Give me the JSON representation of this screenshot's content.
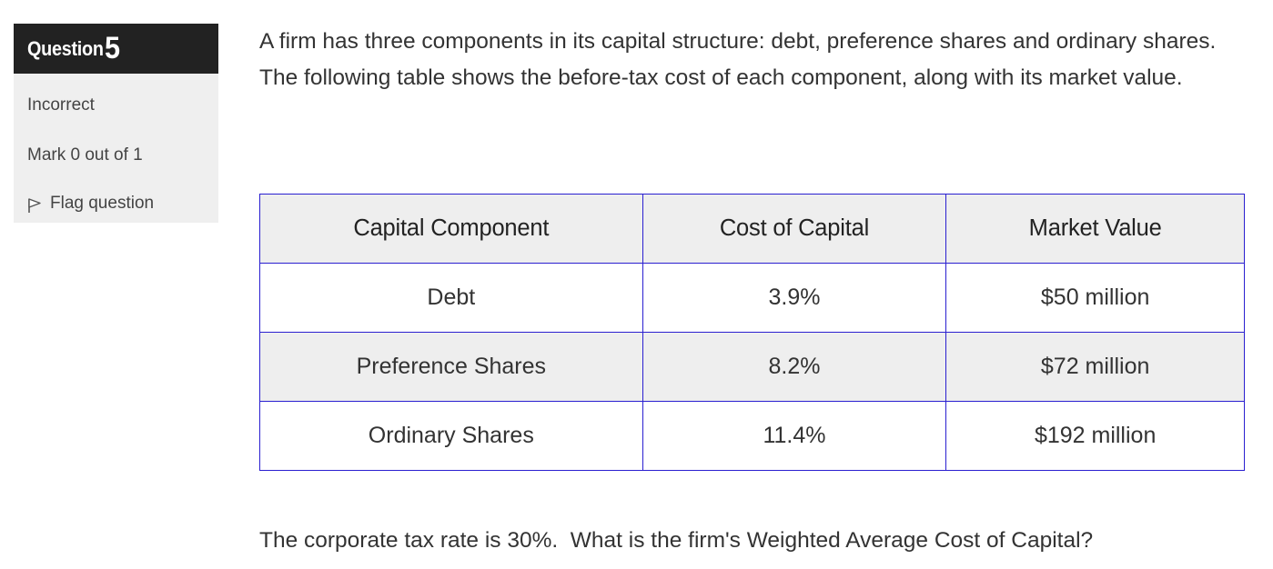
{
  "info": {
    "question_word": "Question",
    "question_number": "5",
    "state": "Incorrect",
    "mark": "Mark 0 out of 1",
    "flag_label": "Flag question"
  },
  "question": {
    "intro": "A firm has three components in its capital structure: debt, preference shares and ordinary shares.  The following table shows the before-tax cost of each component, along with its market value.",
    "prompt": "The corporate tax rate is 30%.  What is the firm's Weighted Average Cost of Capital?"
  },
  "table": {
    "headers": [
      "Capital Component",
      "Cost of Capital",
      "Market Value"
    ],
    "rows": [
      [
        "Debt",
        "3.9%",
        "$50 million"
      ],
      [
        "Preference Shares",
        "8.2%",
        "$72 million"
      ],
      [
        "Ordinary Shares",
        "11.4%",
        "$192 million"
      ]
    ]
  },
  "colors": {
    "header_bg": "#222222",
    "panel_bg": "#efefef",
    "table_border": "#2a1fd0",
    "row_shade": "#eeeeee"
  },
  "icons": {
    "flag": "flag-icon"
  }
}
